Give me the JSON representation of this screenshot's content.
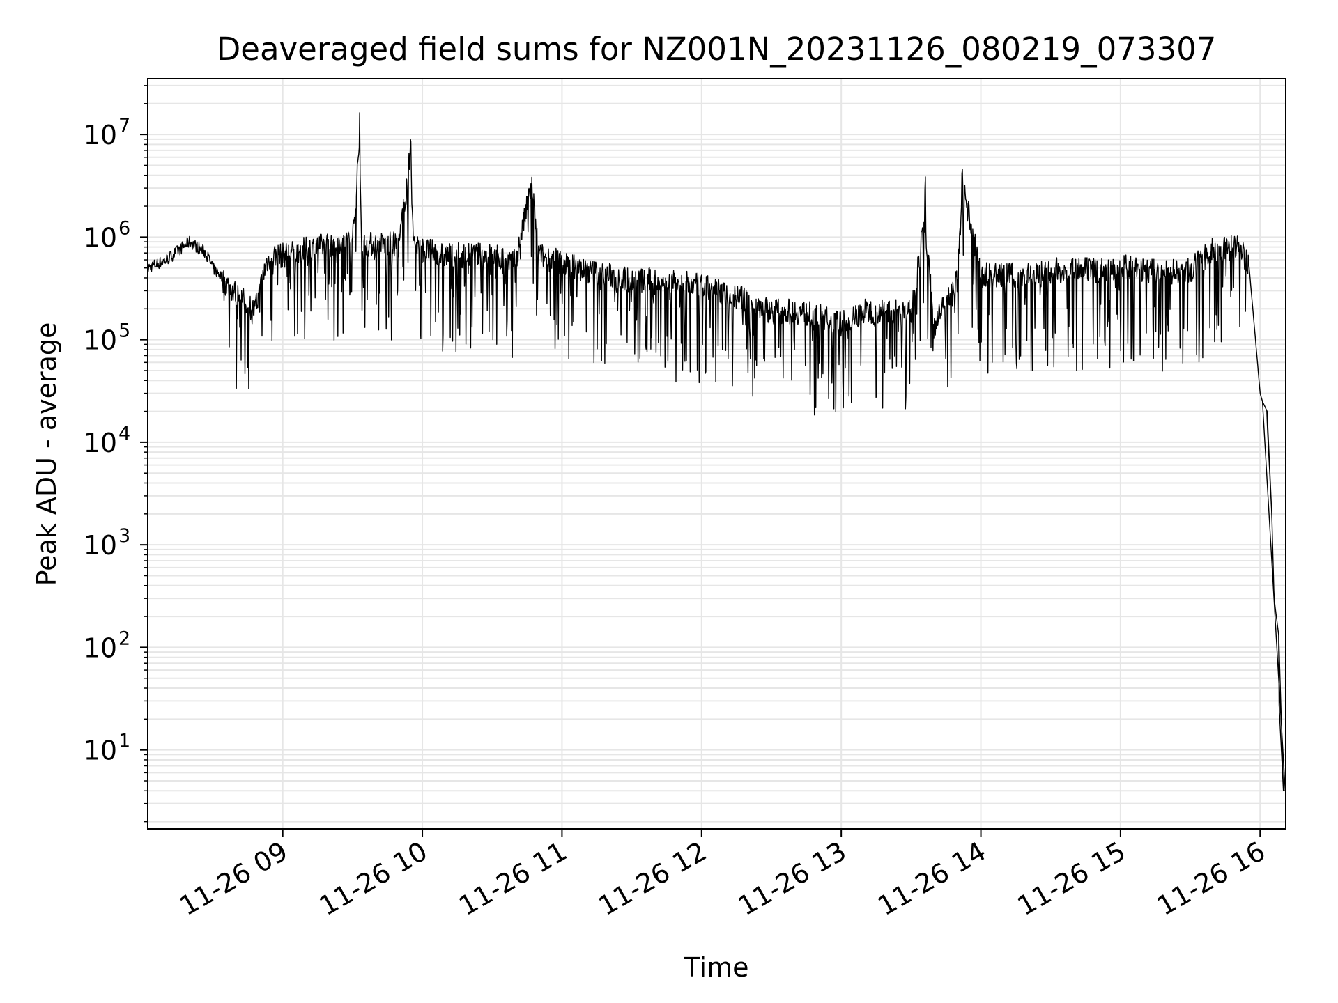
{
  "chart_data": {
    "type": "line",
    "title": "Deaveraged field sums for NZ001N_20231126_080219_073307",
    "xlabel": "Time",
    "ylabel": "Peak ADU - average",
    "yscale": "log",
    "ylim": [
      1.7,
      35000000
    ],
    "xlim": [
      "2023-11-26 08:02",
      "2023-11-26 16:11"
    ],
    "grid": "on",
    "line_color": "#000000",
    "x_ticks": [
      "11-26 09",
      "11-26 10",
      "11-26 11",
      "11-26 12",
      "11-26 13",
      "11-26 14",
      "11-26 15",
      "11-26 16"
    ],
    "y_ticks": [
      {
        "base": "10",
        "exp": "1"
      },
      {
        "base": "10",
        "exp": "2"
      },
      {
        "base": "10",
        "exp": "3"
      },
      {
        "base": "10",
        "exp": "4"
      },
      {
        "base": "10",
        "exp": "5"
      },
      {
        "base": "10",
        "exp": "6"
      },
      {
        "base": "10",
        "exp": "7"
      }
    ],
    "series": [
      {
        "x": [
          "08:02",
          "08:10",
          "08:20",
          "08:27",
          "08:30",
          "08:40",
          "08:48",
          "08:53",
          "08:56",
          "09:00",
          "09:10",
          "09:20",
          "09:30",
          "09:33",
          "09:34",
          "09:40",
          "09:50",
          "09:55",
          "09:56",
          "10:00",
          "10:10",
          "10:20",
          "10:30",
          "10:40",
          "10:47",
          "10:50",
          "11:00",
          "11:10",
          "11:20",
          "11:30",
          "11:40",
          "11:50",
          "12:00",
          "12:10",
          "12:20",
          "12:30",
          "12:40",
          "12:50",
          "13:00",
          "13:10",
          "13:20",
          "13:30",
          "13:36",
          "13:40",
          "13:50",
          "13:52",
          "14:00",
          "14:10",
          "14:20",
          "14:30",
          "14:40",
          "14:50",
          "15:00",
          "15:10",
          "15:20",
          "15:30",
          "15:40",
          "15:50",
          "15:55",
          "15:58",
          "16:00",
          "16:01",
          "16:03",
          "16:05",
          "16:06",
          "16:08",
          "16:10",
          "16:11"
        ],
        "y": [
          500000,
          600000,
          900000,
          700000,
          500000,
          300000,
          200000,
          600000,
          700000,
          700000,
          800000,
          900000,
          1000000,
          17000000,
          900000,
          900000,
          900000,
          11000000,
          1000000,
          800000,
          700000,
          700000,
          700000,
          600000,
          3500000,
          700000,
          600000,
          500000,
          450000,
          400000,
          400000,
          380000,
          350000,
          300000,
          250000,
          200000,
          200000,
          180000,
          150000,
          200000,
          200000,
          200000,
          3300000,
          150000,
          400000,
          3700000,
          450000,
          450000,
          450000,
          500000,
          500000,
          500000,
          550000,
          500000,
          480000,
          500000,
          800000,
          850000,
          600000,
          100000,
          30000,
          25000,
          20000,
          2000,
          300,
          130,
          4,
          4
        ]
      }
    ]
  }
}
